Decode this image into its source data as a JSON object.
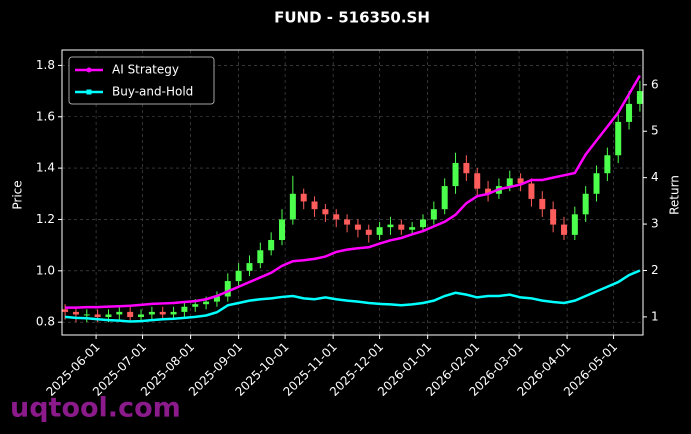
{
  "chart_data": {
    "type": "candlestick",
    "title": "FUND - 516350.SH",
    "ylabel": "Price",
    "y2label": "Return",
    "x": [
      "2025-05-12",
      "2025-05-19",
      "2025-05-26",
      "2025-06-02",
      "2025-06-09",
      "2025-06-16",
      "2025-06-23",
      "2025-06-30",
      "2025-07-07",
      "2025-07-14",
      "2025-07-21",
      "2025-07-28",
      "2025-08-04",
      "2025-08-11",
      "2025-08-18",
      "2025-08-25",
      "2025-09-01",
      "2025-09-08",
      "2025-09-15",
      "2025-09-22",
      "2025-09-29",
      "2025-10-06",
      "2025-10-13",
      "2025-10-20",
      "2025-10-27",
      "2025-11-03",
      "2025-11-10",
      "2025-11-17",
      "2025-11-24",
      "2025-12-01",
      "2025-12-08",
      "2025-12-15",
      "2025-12-22",
      "2025-12-29",
      "2026-01-05",
      "2026-01-12",
      "2026-01-19",
      "2026-01-26",
      "2026-02-02",
      "2026-02-09",
      "2026-02-16",
      "2026-02-23",
      "2026-03-02",
      "2026-03-09",
      "2026-03-16",
      "2026-03-23",
      "2026-03-30",
      "2026-04-06",
      "2026-04-13",
      "2026-04-20",
      "2026-04-27",
      "2026-05-04",
      "2026-05-11",
      "2026-05-18"
    ],
    "open": [
      0.85,
      0.84,
      0.83,
      0.83,
      0.82,
      0.83,
      0.84,
      0.82,
      0.83,
      0.84,
      0.83,
      0.84,
      0.86,
      0.87,
      0.88,
      0.9,
      0.96,
      1.0,
      1.03,
      1.08,
      1.12,
      1.2,
      1.3,
      1.27,
      1.24,
      1.22,
      1.2,
      1.18,
      1.16,
      1.14,
      1.17,
      1.18,
      1.16,
      1.17,
      1.2,
      1.24,
      1.33,
      1.42,
      1.38,
      1.32,
      1.3,
      1.33,
      1.36,
      1.34,
      1.28,
      1.24,
      1.18,
      1.14,
      1.22,
      1.3,
      1.38,
      1.45,
      1.58,
      1.65
    ],
    "high": [
      0.87,
      0.86,
      0.85,
      0.85,
      0.85,
      0.86,
      0.86,
      0.85,
      0.86,
      0.86,
      0.86,
      0.88,
      0.89,
      0.9,
      0.92,
      0.99,
      1.03,
      1.06,
      1.11,
      1.15,
      1.24,
      1.37,
      1.32,
      1.29,
      1.26,
      1.24,
      1.22,
      1.2,
      1.18,
      1.19,
      1.21,
      1.2,
      1.19,
      1.22,
      1.27,
      1.36,
      1.46,
      1.45,
      1.4,
      1.35,
      1.36,
      1.39,
      1.38,
      1.36,
      1.31,
      1.27,
      1.21,
      1.25,
      1.33,
      1.41,
      1.48,
      1.62,
      1.7,
      1.74
    ],
    "low": [
      0.81,
      0.8,
      0.8,
      0.8,
      0.8,
      0.81,
      0.8,
      0.8,
      0.81,
      0.81,
      0.81,
      0.82,
      0.84,
      0.85,
      0.86,
      0.88,
      0.94,
      0.98,
      1.01,
      1.06,
      1.1,
      1.18,
      1.24,
      1.21,
      1.19,
      1.17,
      1.15,
      1.13,
      1.11,
      1.12,
      1.14,
      1.14,
      1.14,
      1.15,
      1.18,
      1.22,
      1.3,
      1.35,
      1.29,
      1.27,
      1.28,
      1.31,
      1.31,
      1.25,
      1.21,
      1.15,
      1.12,
      1.12,
      1.19,
      1.27,
      1.35,
      1.42,
      1.55,
      1.62
    ],
    "close": [
      0.84,
      0.83,
      0.83,
      0.82,
      0.83,
      0.84,
      0.82,
      0.83,
      0.84,
      0.83,
      0.84,
      0.86,
      0.87,
      0.88,
      0.9,
      0.96,
      1.0,
      1.03,
      1.08,
      1.12,
      1.2,
      1.3,
      1.27,
      1.24,
      1.22,
      1.2,
      1.18,
      1.16,
      1.14,
      1.17,
      1.18,
      1.16,
      1.17,
      1.2,
      1.24,
      1.33,
      1.42,
      1.38,
      1.32,
      1.3,
      1.33,
      1.36,
      1.34,
      1.28,
      1.24,
      1.18,
      1.14,
      1.22,
      1.3,
      1.38,
      1.45,
      1.58,
      1.65,
      1.7
    ],
    "up_color": "#4dff4d",
    "down_color": "#ff5c5c",
    "series": [
      {
        "name": "AI Strategy",
        "color": "#ff00ff",
        "axis": "y2",
        "values": [
          1.2,
          1.2,
          1.21,
          1.21,
          1.22,
          1.23,
          1.24,
          1.26,
          1.28,
          1.29,
          1.3,
          1.32,
          1.34,
          1.38,
          1.45,
          1.55,
          1.65,
          1.75,
          1.85,
          1.95,
          2.1,
          2.2,
          2.22,
          2.25,
          2.3,
          2.4,
          2.45,
          2.48,
          2.5,
          2.58,
          2.65,
          2.7,
          2.78,
          2.85,
          2.95,
          3.05,
          3.2,
          3.45,
          3.6,
          3.65,
          3.75,
          3.8,
          3.85,
          3.95,
          3.95,
          4.0,
          4.05,
          4.1,
          4.5,
          4.8,
          5.1,
          5.4,
          5.8,
          6.2
        ]
      },
      {
        "name": "Buy-and-Hold",
        "color": "#00ffff",
        "axis": "y2",
        "values": [
          1.0,
          0.98,
          0.97,
          0.95,
          0.93,
          0.92,
          0.9,
          0.91,
          0.93,
          0.95,
          0.96,
          0.98,
          1.0,
          1.03,
          1.1,
          1.25,
          1.3,
          1.35,
          1.38,
          1.4,
          1.43,
          1.45,
          1.4,
          1.38,
          1.42,
          1.38,
          1.35,
          1.33,
          1.3,
          1.28,
          1.27,
          1.25,
          1.27,
          1.3,
          1.35,
          1.45,
          1.52,
          1.48,
          1.42,
          1.45,
          1.45,
          1.48,
          1.42,
          1.4,
          1.35,
          1.32,
          1.3,
          1.35,
          1.45,
          1.55,
          1.65,
          1.75,
          1.9,
          2.0
        ]
      }
    ],
    "xlim": [
      "2025-05-10",
      "2026-05-20"
    ],
    "xticks": [
      "2025-06-01",
      "2025-07-01",
      "2025-08-01",
      "2025-09-01",
      "2025-10-01",
      "2025-11-01",
      "2025-12-01",
      "2026-01-01",
      "2026-02-01",
      "2026-03-01",
      "2026-04-01",
      "2026-05-01"
    ],
    "ylim": [
      0.75,
      1.86
    ],
    "yticks": [
      0.8,
      {
        "value": 1,
        "label": "1.0"
      },
      1.2,
      1.4,
      1.6,
      1.8
    ],
    "y2lim": [
      0.61,
      6.75
    ],
    "y2ticks": [
      1,
      2,
      3,
      4,
      5,
      6
    ],
    "grid": true,
    "legend": "upper left",
    "watermark": "uqtool.com"
  }
}
